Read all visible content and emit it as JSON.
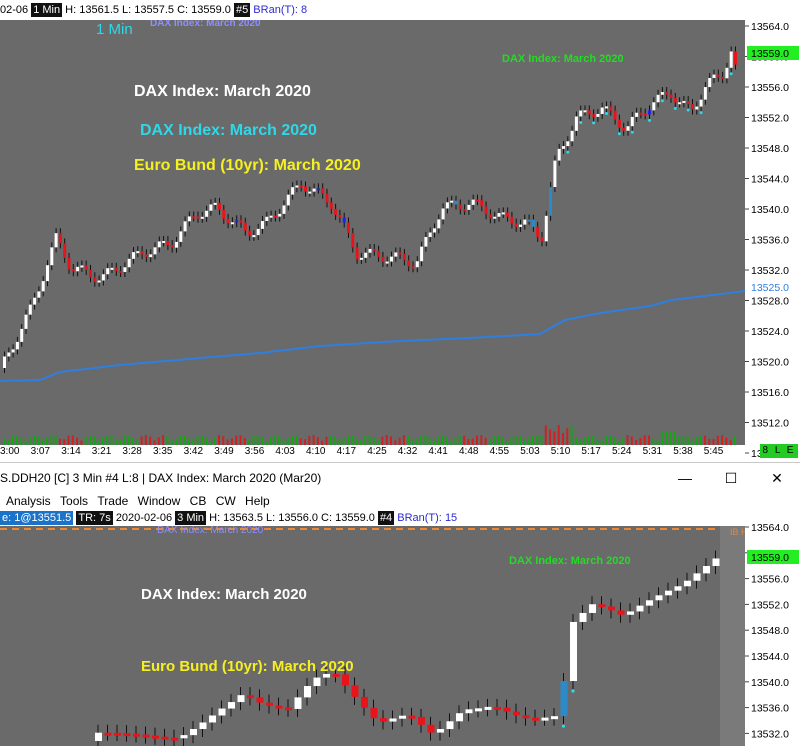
{
  "top": {
    "status": {
      "date_fragment": "02-06",
      "interval": "1 Min",
      "ohlc": "H: 13561.5 L: 13557.5 C: 13559.0",
      "chart_num": "#5",
      "bran_label": "BRan(T):",
      "bran_value": "8"
    },
    "overlay_interval": "1 Min",
    "small_label": "DAX Index: March 2020",
    "labels": {
      "white": "DAX Index: March 2020",
      "cyan": "DAX Index: March 2020",
      "yellow": "Euro Bund (10yr): March 2020",
      "green": "DAX Index: March 2020"
    },
    "price_axis": [
      "13564.0",
      "13560.0",
      "13556.0",
      "13552.0",
      "13548.0",
      "13544.0",
      "13540.0",
      "13536.0",
      "13532.0",
      "13528.0",
      "13524.0",
      "13520.0",
      "13516.0",
      "13512.0",
      "13508.0"
    ],
    "current_price": "13559.0",
    "blue_line_price": "13525.0",
    "time_axis": [
      "3:00",
      "3:07",
      "3:14",
      "3:21",
      "3:28",
      "3:35",
      "3:42",
      "3:49",
      "3:56",
      "4:03",
      "4:10",
      "4:17",
      "4:25",
      "4:32",
      "4:41",
      "4:48",
      "4:55",
      "5:03",
      "5:10",
      "5:17",
      "5:24",
      "5:31",
      "5:38",
      "5:45"
    ],
    "badge": "8 L E",
    "colors": {
      "bg": "#6a6a6a",
      "bull": "#ffffff",
      "bear": "#e8141b",
      "blue_bar": "#1e1eff",
      "ma_line": "#2f7fe0",
      "volume": "#16a316"
    }
  },
  "bottom": {
    "title": "S.DDH20 [C]  3 Min   #4  L:8 | DAX Index: March 2020 (Mar20)",
    "window_controls": {
      "minimize": "—",
      "maximize": "☐",
      "close": "✕"
    },
    "menu": [
      "Analysis",
      "Tools",
      "Trade",
      "Window",
      "CB",
      "CW",
      "Help"
    ],
    "status": {
      "prefix": "e: 1@13551.5",
      "tr": "TR: 7s",
      "date": "2020-02-06",
      "interval": "3 Min",
      "ohlc": "H: 13563.5 L: 13556.0 C: 13559.0",
      "chart_num": "#4",
      "bran_label": "BRan(T):",
      "bran_value": "15"
    },
    "small_label": "DAX Index: March 2020",
    "labels": {
      "white": "DAX Index: March 2020",
      "yellow": "Euro Bund (10yr): March 2020",
      "green": "DAX Index: March 2020"
    },
    "price_axis": [
      "13564.0",
      "13560.0",
      "13556.0",
      "13552.0",
      "13548.0",
      "13544.0",
      "13540.0",
      "13536.0",
      "13532.0"
    ],
    "current_price": "13559.0",
    "dashed_label": "IB H"
  }
}
